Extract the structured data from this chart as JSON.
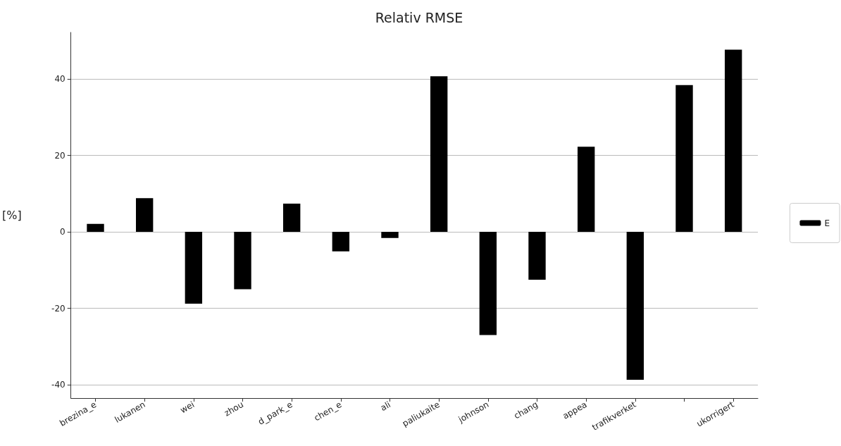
{
  "chart_data": {
    "type": "bar",
    "title": "Relativ RMSE",
    "ylabel": "[%]",
    "categories": [
      "brezina_e",
      "lukanen",
      "wei",
      "zhou",
      "d_park_e",
      "chen_e",
      "ali",
      "paliukaite",
      "johnson",
      "chang",
      "appea",
      "trafikverket",
      null,
      "ukorrigert"
    ],
    "series": [
      {
        "name": "E",
        "color": "#000000",
        "values": [
          2.1,
          8.8,
          -18.8,
          -15.0,
          7.4,
          -5.1,
          -1.6,
          40.7,
          -27.0,
          -12.5,
          22.3,
          -38.7,
          38.4,
          47.7
        ]
      }
    ],
    "ylim": [
      -43.5,
      52.2
    ],
    "yticks": [
      -40,
      -20,
      0,
      20,
      40
    ],
    "grid": "y",
    "legend": "right"
  }
}
